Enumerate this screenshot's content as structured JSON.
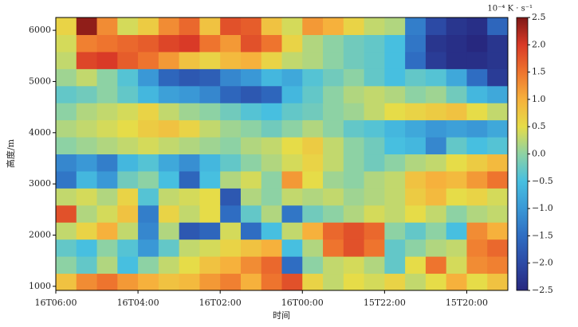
{
  "chart_data": {
    "type": "heatmap",
    "xlabel": "时间",
    "ylabel": "高度/m",
    "colorbar_label": "10⁻⁴ K · s⁻¹",
    "xlim": [
      6,
      -5
    ],
    "ylim": [
      920,
      6250
    ],
    "zlim": [
      -2.5,
      2.5
    ],
    "xticks": [
      {
        "value": 6,
        "label": "16T06:00"
      },
      {
        "value": 4,
        "label": "16T04:00"
      },
      {
        "value": 2,
        "label": "16T02:00"
      },
      {
        "value": 0,
        "label": "16T00:00"
      },
      {
        "value": -2,
        "label": "15T22:00"
      },
      {
        "value": -4,
        "label": "15T20:00"
      }
    ],
    "yticks": [
      1000,
      2000,
      3000,
      4000,
      5000,
      6000
    ],
    "zticks": [
      {
        "value": 2.5,
        "label": "2.5"
      },
      {
        "value": 2,
        "label": "2.0"
      },
      {
        "value": 1.5,
        "label": "1.5"
      },
      {
        "value": 1,
        "label": "1.0"
      },
      {
        "value": 0.5,
        "label": "0.5"
      },
      {
        "value": 0,
        "label": "0.0"
      },
      {
        "value": -0.5,
        "label": "−0.5"
      },
      {
        "value": -1,
        "label": "−1.0"
      },
      {
        "value": -1.5,
        "label": "−1.5"
      },
      {
        "value": -2,
        "label": "−2.0"
      },
      {
        "value": -2.5,
        "label": "−2.5"
      }
    ],
    "colormap": [
      "#27287f",
      "#2c4aa5",
      "#2f6dc2",
      "#3a98d6",
      "#47bfe0",
      "#8dd2a4",
      "#e6dc48",
      "#f6b13c",
      "#ee742e",
      "#d93a27",
      "#7e1716"
    ],
    "x": [
      5.75,
      5.25,
      4.75,
      4.25,
      3.75,
      3.25,
      2.75,
      2.25,
      1.75,
      1.25,
      0.75,
      0.25,
      -0.25,
      -0.75,
      -1.25,
      -1.75,
      -2.25,
      -2.75,
      -3.25,
      -3.75,
      -4.25,
      -4.75
    ],
    "y": [
      1087,
      1420,
      1753,
      2086,
      2419,
      2752,
      3085,
      3418,
      3751,
      4084,
      4417,
      4750,
      5083,
      5416,
      5749,
      6082
    ],
    "z": [
      [
        0.8,
        1.3,
        1.5,
        1.2,
        1.0,
        0.8,
        0.9,
        1.2,
        1.4,
        1.0,
        1.5,
        1.8,
        0.6,
        0.3,
        0.5,
        0.4,
        0.6,
        0.3,
        0.5,
        1.0,
        0.5,
        0.8
      ],
      [
        0.0,
        -0.3,
        0.2,
        -0.5,
        0.0,
        0.3,
        0.5,
        0.8,
        1.0,
        1.3,
        1.6,
        -1.5,
        0.0,
        0.3,
        0.4,
        0.2,
        -0.3,
        0.5,
        1.5,
        0.4,
        1.3,
        1.4
      ],
      [
        -0.3,
        -0.5,
        0.0,
        -0.4,
        -1.0,
        -0.3,
        0.3,
        0.4,
        0.6,
        0.8,
        1.0,
        -0.5,
        0.2,
        1.5,
        1.8,
        1.5,
        -0.3,
        0.0,
        0.2,
        0.3,
        1.4,
        1.6
      ],
      [
        0.3,
        0.6,
        1.0,
        0.3,
        -1.2,
        0.2,
        -1.8,
        -1.6,
        0.4,
        -1.5,
        -0.5,
        0.3,
        1.0,
        1.6,
        1.8,
        1.6,
        0.0,
        -0.3,
        0.0,
        -0.5,
        1.3,
        1.0
      ],
      [
        1.8,
        0.2,
        0.4,
        0.8,
        -1.3,
        0.6,
        0.3,
        0.5,
        -1.5,
        -0.3,
        0.2,
        -1.4,
        -0.2,
        0.0,
        0.2,
        0.4,
        0.3,
        0.5,
        0.3,
        0.0,
        0.2,
        0.3
      ],
      [
        0.3,
        0.4,
        0.2,
        0.6,
        -0.4,
        0.3,
        0.4,
        0.5,
        -1.8,
        0.2,
        0.0,
        0.3,
        0.2,
        0.3,
        0.1,
        0.2,
        0.3,
        0.7,
        0.9,
        0.5,
        0.6,
        0.4
      ],
      [
        -1.4,
        -0.6,
        -1.0,
        -0.2,
        0.0,
        -0.5,
        -1.6,
        -0.5,
        0.2,
        0.4,
        0.0,
        1.2,
        0.5,
        0.1,
        0.0,
        0.2,
        0.3,
        0.8,
        1.0,
        0.9,
        1.2,
        1.5
      ],
      [
        -1.2,
        -1.0,
        -1.3,
        -0.6,
        -0.4,
        -0.8,
        -1.1,
        -0.6,
        -0.3,
        0.0,
        0.2,
        0.4,
        0.6,
        0.3,
        0.0,
        -0.2,
        0.0,
        0.2,
        0.3,
        0.5,
        0.7,
        0.9
      ],
      [
        0.0,
        0.1,
        0.2,
        0.3,
        0.4,
        0.3,
        0.2,
        0.1,
        0.0,
        0.2,
        0.3,
        0.5,
        0.7,
        0.3,
        0.0,
        -0.2,
        -0.5,
        -0.6,
        -1.2,
        -0.3,
        -0.5,
        -0.4
      ],
      [
        0.2,
        0.3,
        0.4,
        0.5,
        0.7,
        0.8,
        0.6,
        0.3,
        0.1,
        0.0,
        -0.2,
        0.0,
        0.2,
        0.0,
        -0.3,
        -0.4,
        -0.6,
        -0.8,
        -1.0,
        -0.9,
        -1.0,
        -0.8
      ],
      [
        0.0,
        0.2,
        0.3,
        0.4,
        0.6,
        0.3,
        0.1,
        0.0,
        -0.2,
        -0.4,
        -0.5,
        -0.3,
        -0.2,
        0.0,
        0.1,
        0.3,
        0.5,
        0.6,
        0.7,
        0.8,
        0.5,
        0.3
      ],
      [
        -0.3,
        -0.2,
        0.0,
        -0.3,
        -0.6,
        -0.9,
        -1.0,
        -1.2,
        -1.6,
        -1.8,
        -1.6,
        -0.6,
        -0.3,
        0.0,
        0.2,
        0.3,
        0.2,
        0.0,
        0.1,
        -0.2,
        -0.6,
        -0.8
      ],
      [
        0.1,
        0.3,
        0.0,
        -0.4,
        -1.0,
        -1.6,
        -1.8,
        -1.7,
        -1.2,
        -1.0,
        -0.6,
        -0.8,
        -0.4,
        -0.2,
        0.0,
        -0.3,
        -0.5,
        -0.3,
        -0.4,
        -0.8,
        -1.5,
        -2.2
      ],
      [
        0.3,
        1.9,
        2.0,
        1.7,
        1.5,
        1.2,
        0.8,
        0.6,
        0.9,
        1.0,
        0.6,
        0.3,
        0.2,
        0.0,
        -0.2,
        -0.3,
        -0.5,
        -1.5,
        -2.2,
        -2.4,
        -2.4,
        -2.3
      ],
      [
        0.4,
        1.4,
        1.5,
        1.6,
        1.7,
        1.9,
        2.0,
        1.5,
        1.2,
        1.8,
        1.5,
        0.6,
        0.2,
        0.0,
        -0.2,
        -0.3,
        -0.5,
        -1.4,
        -2.3,
        -2.4,
        -2.5,
        -2.3
      ],
      [
        0.6,
        2.4,
        1.3,
        0.4,
        0.7,
        1.3,
        1.6,
        0.8,
        1.8,
        1.7,
        0.8,
        0.4,
        1.2,
        1.0,
        0.6,
        0.3,
        0.2,
        -1.3,
        -2.0,
        -2.3,
        -2.4,
        -1.6
      ]
    ]
  }
}
